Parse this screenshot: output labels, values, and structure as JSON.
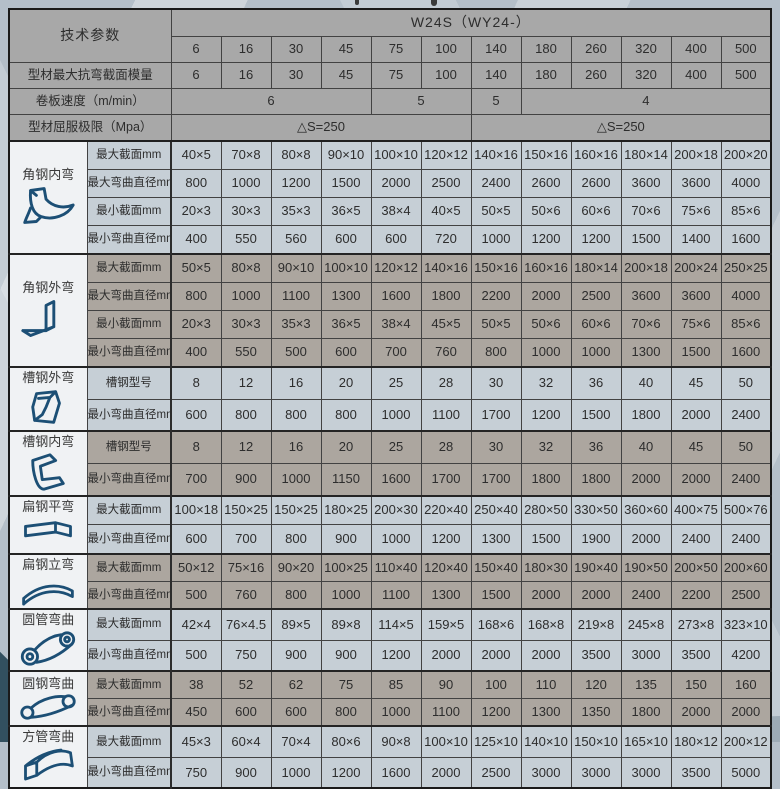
{
  "table": {
    "header": {
      "param_label": "技术参数",
      "model_title": "W24S（WY24-）",
      "columns": [
        "6",
        "16",
        "30",
        "45",
        "75",
        "100",
        "140",
        "180",
        "260",
        "320",
        "400",
        "500"
      ],
      "rows": [
        {
          "label": "型材最大抗弯截面模量",
          "cells": [
            {
              "t": "6",
              "s": 1
            },
            {
              "t": "16",
              "s": 1
            },
            {
              "t": "30",
              "s": 1
            },
            {
              "t": "45",
              "s": 1
            },
            {
              "t": "75",
              "s": 1
            },
            {
              "t": "100",
              "s": 1
            },
            {
              "t": "140",
              "s": 1
            },
            {
              "t": "180",
              "s": 1
            },
            {
              "t": "260",
              "s": 1
            },
            {
              "t": "320",
              "s": 1
            },
            {
              "t": "400",
              "s": 1
            },
            {
              "t": "500",
              "s": 1
            }
          ]
        },
        {
          "label": "卷板速度（m/min）",
          "cells": [
            {
              "t": "6",
              "s": 4
            },
            {
              "t": "5",
              "s": 2
            },
            {
              "t": "5",
              "s": 1
            },
            {
              "t": "4",
              "s": 5
            }
          ]
        },
        {
          "label": "型材屈服极限（Mpa）",
          "cells": [
            {
              "t": "△S=250",
              "s": 6
            },
            {
              "t": "△S=250",
              "s": 6
            }
          ]
        }
      ]
    },
    "sections": [
      {
        "name": "角钢内弯",
        "icon": "angle-steel-inner-bend",
        "tone": "light",
        "rows": [
          {
            "label": "最大截面mm",
            "values": [
              "40×5",
              "70×8",
              "80×8",
              "90×10",
              "100×10",
              "120×12",
              "140×16",
              "150×16",
              "160×16",
              "180×14",
              "200×18",
              "200×20"
            ]
          },
          {
            "label": "最大弯曲直径mm",
            "values": [
              "800",
              "1000",
              "1200",
              "1500",
              "2000",
              "2500",
              "2400",
              "2600",
              "2600",
              "3600",
              "3600",
              "4000"
            ]
          },
          {
            "label": "最小截面mm",
            "values": [
              "20×3",
              "30×3",
              "35×3",
              "36×5",
              "38×4",
              "40×5",
              "50×5",
              "50×6",
              "60×6",
              "70×6",
              "75×6",
              "85×6"
            ]
          },
          {
            "label": "最小弯曲直径mm",
            "values": [
              "400",
              "550",
              "560",
              "600",
              "600",
              "720",
              "1000",
              "1200",
              "1200",
              "1500",
              "1400",
              "1600"
            ]
          }
        ]
      },
      {
        "name": "角钢外弯",
        "icon": "angle-steel-outer-bend",
        "tone": "dark",
        "rows": [
          {
            "label": "最大截面mm",
            "values": [
              "50×5",
              "80×8",
              "90×10",
              "100×10",
              "120×12",
              "140×16",
              "150×16",
              "160×16",
              "180×14",
              "200×18",
              "200×24",
              "250×25"
            ]
          },
          {
            "label": "最大弯曲直径mm",
            "values": [
              "800",
              "1000",
              "1100",
              "1300",
              "1600",
              "1800",
              "2200",
              "2000",
              "2500",
              "3600",
              "3600",
              "4000"
            ]
          },
          {
            "label": "最小截面mm",
            "values": [
              "20×3",
              "30×3",
              "35×3",
              "36×5",
              "38×4",
              "45×5",
              "50×5",
              "50×6",
              "60×6",
              "70×6",
              "75×6",
              "85×6"
            ]
          },
          {
            "label": "最小弯曲直径mm",
            "values": [
              "400",
              "550",
              "500",
              "600",
              "700",
              "760",
              "800",
              "1000",
              "1000",
              "1300",
              "1500",
              "1600"
            ]
          }
        ]
      },
      {
        "name": "槽钢外弯",
        "icon": "channel-steel-outer-bend",
        "tone": "light",
        "rows": [
          {
            "label": "槽钢型号",
            "values": [
              "8",
              "12",
              "16",
              "20",
              "25",
              "28",
              "30",
              "32",
              "36",
              "40",
              "45",
              "50"
            ]
          },
          {
            "label": "最小弯曲直径mm",
            "values": [
              "600",
              "800",
              "800",
              "800",
              "1000",
              "1100",
              "1700",
              "1200",
              "1500",
              "1800",
              "2000",
              "2400"
            ]
          }
        ]
      },
      {
        "name": "槽钢内弯",
        "icon": "channel-steel-inner-bend",
        "tone": "dark",
        "rows": [
          {
            "label": "槽钢型号",
            "values": [
              "8",
              "12",
              "16",
              "20",
              "25",
              "28",
              "30",
              "32",
              "36",
              "40",
              "45",
              "50"
            ]
          },
          {
            "label": "最小弯曲直径mm",
            "values": [
              "700",
              "900",
              "1000",
              "1150",
              "1600",
              "1700",
              "1700",
              "1800",
              "1800",
              "2000",
              "2000",
              "2400"
            ]
          }
        ]
      },
      {
        "name": "扁钢平弯",
        "icon": "flat-steel-flatwise-bend",
        "tone": "light",
        "rows": [
          {
            "label": "最大截面mm",
            "values": [
              "100×18",
              "150×25",
              "150×25",
              "180×25",
              "200×30",
              "220×40",
              "250×40",
              "280×50",
              "330×50",
              "360×60",
              "400×75",
              "500×76"
            ]
          },
          {
            "label": "最小弯曲直径mm",
            "values": [
              "600",
              "700",
              "800",
              "900",
              "1000",
              "1200",
              "1300",
              "1500",
              "1900",
              "2000",
              "2400",
              "2400"
            ]
          }
        ]
      },
      {
        "name": "扁钢立弯",
        "icon": "flat-steel-edgewise-bend",
        "tone": "dark",
        "rows": [
          {
            "label": "最大截面mm",
            "values": [
              "50×12",
              "75×16",
              "90×20",
              "100×25",
              "110×40",
              "120×40",
              "150×40",
              "180×30",
              "190×40",
              "190×50",
              "200×50",
              "200×60"
            ]
          },
          {
            "label": "最小弯曲直径mm",
            "values": [
              "500",
              "760",
              "800",
              "1000",
              "1100",
              "1300",
              "1500",
              "2000",
              "2000",
              "2400",
              "2200",
              "2500"
            ]
          }
        ]
      },
      {
        "name": "圆管弯曲",
        "icon": "round-pipe-bend",
        "tone": "light",
        "rows": [
          {
            "label": "最大截面mm",
            "values": [
              "42×4",
              "76×4.5",
              "89×5",
              "89×8",
              "114×5",
              "159×5",
              "168×6",
              "168×8",
              "219×8",
              "245×8",
              "273×8",
              "323×10"
            ]
          },
          {
            "label": "最小弯曲直径mm",
            "values": [
              "500",
              "750",
              "900",
              "900",
              "1200",
              "2000",
              "2000",
              "2000",
              "3500",
              "3000",
              "3500",
              "4200"
            ]
          }
        ]
      },
      {
        "name": "圆钢弯曲",
        "icon": "round-bar-bend",
        "tone": "dark",
        "rows": [
          {
            "label": "最大截面mm",
            "values": [
              "38",
              "52",
              "62",
              "75",
              "85",
              "90",
              "100",
              "110",
              "120",
              "135",
              "150",
              "160"
            ]
          },
          {
            "label": "最小弯曲直径mm",
            "values": [
              "450",
              "600",
              "600",
              "800",
              "1000",
              "1100",
              "1200",
              "1300",
              "1350",
              "1800",
              "2000",
              "2000"
            ]
          }
        ]
      },
      {
        "name": "方管弯曲",
        "icon": "square-tube-bend",
        "tone": "light",
        "rows": [
          {
            "label": "最大截面mm",
            "values": [
              "45×3",
              "60×4",
              "70×4",
              "80×6",
              "90×8",
              "100×10",
              "125×10",
              "140×10",
              "150×10",
              "165×10",
              "180×12",
              "200×12"
            ]
          },
          {
            "label": "最小弯曲直径mm",
            "values": [
              "750",
              "900",
              "1000",
              "1200",
              "1600",
              "2000",
              "2500",
              "3000",
              "3000",
              "3000",
              "3500",
              "5000"
            ]
          }
        ]
      }
    ]
  }
}
